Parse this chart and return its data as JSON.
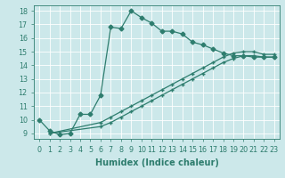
{
  "bg_color": "#cce8ea",
  "grid_color": "#b0d4d8",
  "line_color": "#2e7d6e",
  "xlabel": "Humidex (Indice chaleur)",
  "xlim": [
    -0.5,
    23.5
  ],
  "ylim": [
    8.6,
    18.4
  ],
  "xticks": [
    0,
    1,
    2,
    3,
    4,
    5,
    6,
    7,
    8,
    9,
    10,
    11,
    12,
    13,
    14,
    15,
    16,
    17,
    18,
    19,
    20,
    21,
    22,
    23
  ],
  "yticks": [
    9,
    10,
    11,
    12,
    13,
    14,
    15,
    16,
    17,
    18
  ],
  "line1_x": [
    0,
    1,
    2,
    3,
    4,
    5,
    6,
    7,
    8,
    9,
    10,
    11,
    12,
    13,
    14,
    15,
    16,
    17,
    18,
    19,
    20,
    21,
    22,
    23
  ],
  "line1_y": [
    10.0,
    9.2,
    8.9,
    9.0,
    10.4,
    10.4,
    11.8,
    16.8,
    16.7,
    18.0,
    17.5,
    17.1,
    16.5,
    16.5,
    16.3,
    15.7,
    15.5,
    15.2,
    14.9,
    14.7,
    14.7,
    14.6,
    14.6,
    14.6
  ],
  "line2_x": [
    1,
    6,
    7,
    8,
    9,
    10,
    11,
    12,
    13,
    14,
    15,
    16,
    17,
    18,
    19,
    20,
    21,
    22,
    23
  ],
  "line2_y": [
    9.0,
    9.8,
    10.2,
    10.6,
    11.0,
    11.4,
    11.8,
    12.2,
    12.6,
    13.0,
    13.4,
    13.8,
    14.2,
    14.6,
    14.9,
    15.0,
    15.0,
    14.8,
    14.8
  ],
  "line3_x": [
    1,
    6,
    7,
    8,
    9,
    10,
    11,
    12,
    13,
    14,
    15,
    16,
    17,
    18,
    19,
    20,
    21,
    22,
    23
  ],
  "line3_y": [
    9.0,
    9.5,
    9.8,
    10.2,
    10.6,
    11.0,
    11.4,
    11.8,
    12.2,
    12.6,
    13.0,
    13.4,
    13.8,
    14.2,
    14.5,
    14.7,
    14.7,
    14.6,
    14.6
  ],
  "marker_size": 2.5,
  "linewidth": 0.9,
  "label_fontsize": 7.0,
  "tick_fontsize": 5.8
}
